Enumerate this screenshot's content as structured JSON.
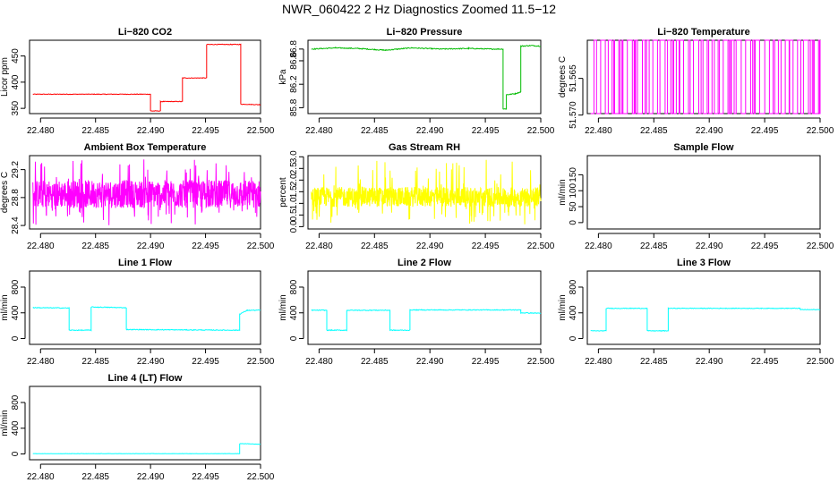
{
  "page": {
    "title": "NWR_060422  2 Hz Diagnostics Zoomed 11.5−12"
  },
  "chart_data": [
    {
      "type": "line",
      "title": "Li−820 CO2",
      "ylabel": "Licor ppm",
      "xlim": [
        22.479,
        22.5
      ],
      "ylim": [
        340,
        480
      ],
      "xticks": [
        22.48,
        22.485,
        22.49,
        22.495,
        22.5
      ],
      "xtick_labels": [
        "22.480",
        "22.485",
        "22.490",
        "22.495",
        "22.500"
      ],
      "yticks": [
        350,
        400,
        450
      ],
      "ytick_labels": [
        "350",
        "400",
        "450"
      ],
      "color": "#ff0000",
      "noise": 0.6,
      "noise_mode": "jitter",
      "series": [
        {
          "segments": [
            {
              "x": [
                22.4793,
                22.49,
                22.49,
                22.4909,
                22.4909,
                22.4918,
                22.4918,
                22.4929,
                22.4929,
                22.4944,
                22.4944,
                22.4951,
                22.4951,
                22.4982,
                22.4982,
                22.5
              ]
            },
            {
              "y": [
                377,
                377,
                345,
                345,
                363,
                363,
                363,
                363,
                408,
                408,
                408,
                408,
                472,
                472,
                358,
                357
              ]
            }
          ]
        }
      ]
    },
    {
      "type": "line",
      "title": "Li−820 Pressure",
      "ylabel": "kPa",
      "xlim": [
        22.479,
        22.5
      ],
      "ylim": [
        85.7,
        86.95
      ],
      "xticks": [
        22.48,
        22.485,
        22.49,
        22.495,
        22.5
      ],
      "xtick_labels": [
        "22.480",
        "22.485",
        "22.490",
        "22.495",
        "22.500"
      ],
      "yticks": [
        85.8,
        86.2,
        86.6,
        86.8
      ],
      "ytick_labels": [
        "85.8",
        "86.2",
        "86.6",
        "86.8"
      ],
      "color": "#00bb00",
      "noise": 0.008,
      "noise_mode": "jitter",
      "series": [
        {
          "segments": [
            {
              "x": [
                22.4793,
                22.4815,
                22.4835,
                22.486,
                22.4883,
                22.491,
                22.4935,
                22.4955,
                22.4966,
                22.4966,
                22.4969,
                22.4969,
                22.4977,
                22.4982,
                22.4982,
                22.4992,
                22.5
              ]
            },
            {
              "y": [
                86.8,
                86.82,
                86.81,
                86.78,
                86.82,
                86.8,
                86.81,
                86.8,
                86.8,
                85.78,
                85.78,
                86.02,
                86.04,
                86.07,
                86.85,
                86.86,
                86.85
              ]
            }
          ]
        }
      ]
    },
    {
      "type": "line",
      "title": "Li−820 Temperature",
      "ylabel": "degrees C",
      "xlim": [
        22.479,
        22.5
      ],
      "ylim": [
        51.5698,
        51.5598
      ],
      "xticks": [
        22.48,
        22.485,
        22.49,
        22.495,
        22.5
      ],
      "xtick_labels": [
        "22.480",
        "22.485",
        "22.490",
        "22.495",
        "22.500"
      ],
      "yticks": [
        51.57,
        51.565
      ],
      "ytick_labels": [
        "51.570",
        "51.565"
      ],
      "color": "#ff00ff",
      "noise_mode": "toggle",
      "toggle_values": [
        51.5698,
        51.5598
      ],
      "series": [
        {
          "x_range": [
            22.4793,
            22.5
          ]
        }
      ]
    },
    {
      "type": "line",
      "title": "Ambient Box Temperature",
      "ylabel": "degrees C",
      "xlim": [
        22.479,
        22.5
      ],
      "ylim": [
        28.35,
        29.4
      ],
      "xticks": [
        22.48,
        22.485,
        22.49,
        22.495,
        22.5
      ],
      "xtick_labels": [
        "22.480",
        "22.485",
        "22.490",
        "22.495",
        "22.500"
      ],
      "yticks": [
        28.4,
        28.8,
        29.2
      ],
      "ytick_labels": [
        "28.4",
        "28.8",
        "29.2"
      ],
      "color": "#ff00ff",
      "noise_mode": "band",
      "band": [
        28.65,
        29.05
      ],
      "spike": [
        28.4,
        29.35
      ],
      "series": [
        {
          "x_range": [
            22.4793,
            22.5
          ]
        }
      ]
    },
    {
      "type": "line",
      "title": "Gas Stream RH",
      "ylabel": "percent",
      "xlim": [
        22.479,
        22.5
      ],
      "ylim": [
        -0.1,
        3.05
      ],
      "xticks": [
        22.48,
        22.485,
        22.49,
        22.495,
        22.5
      ],
      "xtick_labels": [
        "22.480",
        "22.485",
        "22.490",
        "22.495",
        "22.500"
      ],
      "yticks": [
        0.0,
        0.5,
        1.0,
        1.5,
        2.0,
        2.5,
        3.0
      ],
      "ytick_labels": [
        "0.0",
        "0.5",
        "1.0",
        "1.5",
        "2.0",
        "2.5",
        "3.0"
      ],
      "color": "#ffff00",
      "noise_mode": "band",
      "band": [
        0.85,
        1.7
      ],
      "spike": [
        0.1,
        2.9
      ],
      "series": [
        {
          "x_range": [
            22.4793,
            22.5
          ]
        }
      ]
    },
    {
      "type": "line",
      "title": "Sample Flow",
      "ylabel": "ml/min",
      "xlim": [
        22.479,
        22.5
      ],
      "ylim": [
        -20,
        210
      ],
      "xticks": [
        22.48,
        22.485,
        22.49,
        22.495,
        22.5
      ],
      "xtick_labels": [
        "22.480",
        "22.485",
        "22.490",
        "22.495",
        "22.500"
      ],
      "yticks": [
        0,
        50,
        100,
        150
      ],
      "ytick_labels": [
        "0",
        "50",
        "100",
        "150"
      ],
      "color": "#000000",
      "empty": true,
      "series": []
    },
    {
      "type": "line",
      "title": "Line 1 Flow",
      "ylabel": "ml/min",
      "xlim": [
        22.479,
        22.5
      ],
      "ylim": [
        -90,
        1050
      ],
      "xticks": [
        22.48,
        22.485,
        22.49,
        22.495,
        22.5
      ],
      "xtick_labels": [
        "22.480",
        "22.485",
        "22.490",
        "22.495",
        "22.500"
      ],
      "yticks": [
        0,
        400,
        800
      ],
      "ytick_labels": [
        "0",
        "400",
        "800"
      ],
      "color": "#00ffff",
      "noise": 6,
      "noise_mode": "jitter",
      "series": [
        {
          "segments": [
            {
              "x": [
                22.4793,
                22.4826,
                22.4826,
                22.4846,
                22.4846,
                22.4878,
                22.4878,
                22.4981,
                22.4981,
                22.4988,
                22.5
              ]
            },
            {
              "y": [
                480,
                475,
                130,
                130,
                490,
                480,
                140,
                130,
                380,
                440,
                440
              ]
            }
          ]
        }
      ]
    },
    {
      "type": "line",
      "title": "Line 2 Flow",
      "ylabel": "ml/min",
      "xlim": [
        22.479,
        22.5
      ],
      "ylim": [
        -90,
        1050
      ],
      "xticks": [
        22.48,
        22.485,
        22.49,
        22.495,
        22.5
      ],
      "xtick_labels": [
        "22.480",
        "22.485",
        "22.490",
        "22.495",
        "22.500"
      ],
      "yticks": [
        0,
        400,
        800
      ],
      "ytick_labels": [
        "0",
        "400",
        "800"
      ],
      "color": "#00ffff",
      "noise": 6,
      "noise_mode": "jitter",
      "series": [
        {
          "segments": [
            {
              "x": [
                22.4793,
                22.4807,
                22.4807,
                22.4825,
                22.4825,
                22.4864,
                22.4864,
                22.4882,
                22.4882,
                22.4982,
                22.4982,
                22.5
              ]
            },
            {
              "y": [
                440,
                440,
                130,
                130,
                440,
                440,
                130,
                130,
                445,
                445,
                400,
                395
              ]
            }
          ]
        }
      ]
    },
    {
      "type": "line",
      "title": "Line 3 Flow",
      "ylabel": "ml/min",
      "xlim": [
        22.479,
        22.5
      ],
      "ylim": [
        -90,
        1050
      ],
      "xticks": [
        22.48,
        22.485,
        22.49,
        22.495,
        22.5
      ],
      "xtick_labels": [
        "22.480",
        "22.485",
        "22.490",
        "22.495",
        "22.500"
      ],
      "yticks": [
        0,
        400,
        800
      ],
      "ytick_labels": [
        "0",
        "400",
        "800"
      ],
      "color": "#00ffff",
      "noise": 5,
      "noise_mode": "jitter",
      "series": [
        {
          "segments": [
            {
              "x": [
                22.4793,
                22.4807,
                22.4807,
                22.4844,
                22.4844,
                22.4863,
                22.4863,
                22.4982,
                22.4982,
                22.5
              ]
            },
            {
              "y": [
                120,
                120,
                470,
                470,
                120,
                120,
                470,
                470,
                450,
                450
              ]
            }
          ]
        }
      ]
    },
    {
      "type": "line",
      "title": "Line 4 (LT) Flow",
      "ylabel": "ml/min",
      "xlim": [
        22.479,
        22.5
      ],
      "ylim": [
        -90,
        1050
      ],
      "xticks": [
        22.48,
        22.485,
        22.49,
        22.495,
        22.5
      ],
      "xtick_labels": [
        "22.480",
        "22.485",
        "22.490",
        "22.495",
        "22.500"
      ],
      "yticks": [
        0,
        400,
        800
      ],
      "ytick_labels": [
        "0",
        "400",
        "800"
      ],
      "color": "#00ffff",
      "noise": 2,
      "noise_mode": "jitter",
      "series": [
        {
          "segments": [
            {
              "x": [
                22.4793,
                22.4981,
                22.4981,
                22.4986,
                22.5
              ]
            },
            {
              "y": [
                5,
                5,
                160,
                160,
                150
              ]
            }
          ]
        }
      ]
    }
  ]
}
